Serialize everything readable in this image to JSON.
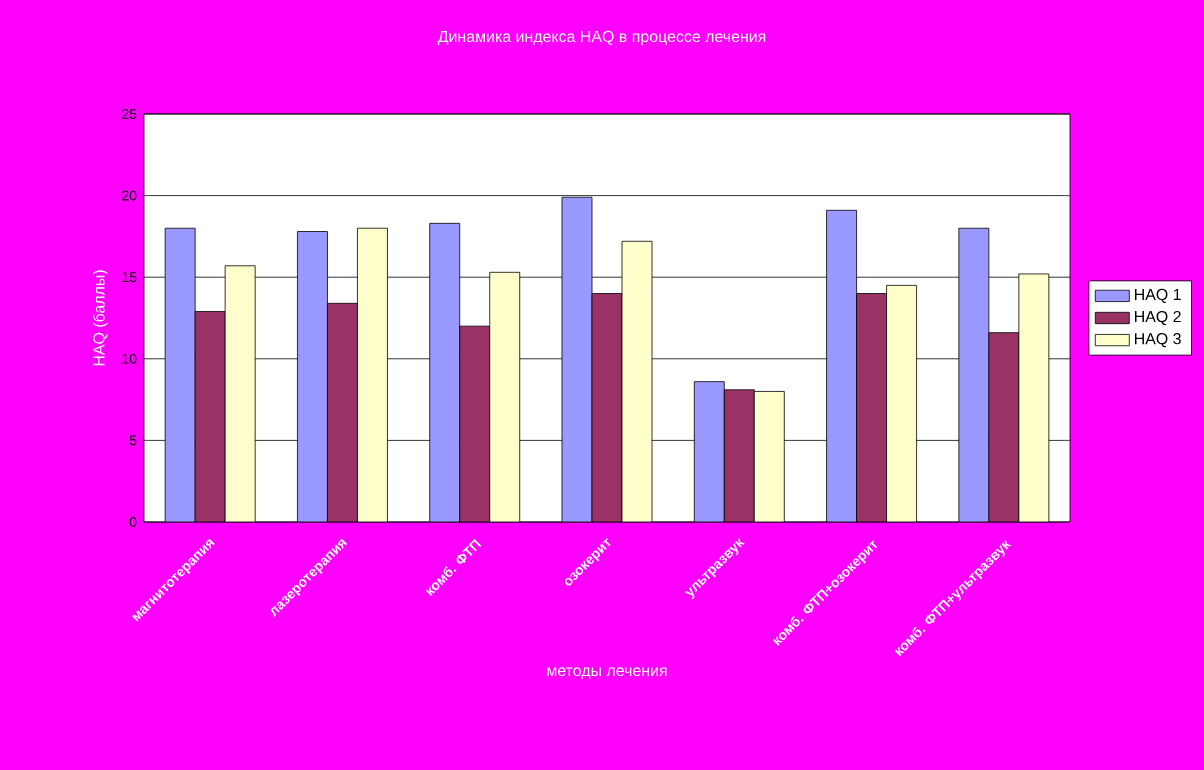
{
  "chart_data": {
    "type": "bar",
    "title": "Динамика индекса HAQ в процессе лечения",
    "xlabel": "методы лечения",
    "ylabel": "HAQ (баллы)",
    "categories": [
      "магнитотерапия",
      "лазеротерапия",
      "комб. ФТП",
      "озокерит",
      "ультразвук",
      "комб. ФТП+озокерит",
      "комб. ФТП+ультразвук"
    ],
    "series": [
      {
        "name": "HAQ 1",
        "color": "#9999ff",
        "values": [
          18.0,
          17.8,
          18.3,
          19.9,
          8.6,
          19.1,
          18.0
        ]
      },
      {
        "name": "HAQ 2",
        "color": "#993366",
        "values": [
          12.9,
          13.4,
          12.0,
          14.0,
          8.1,
          14.0,
          11.6
        ]
      },
      {
        "name": "HAQ 3",
        "color": "#ffffcc",
        "values": [
          15.7,
          18.0,
          15.3,
          17.2,
          8.0,
          14.5,
          15.2
        ]
      }
    ],
    "ylim": [
      0,
      25
    ],
    "yticks": [
      0,
      5,
      10,
      15,
      20,
      25
    ],
    "grid": "y",
    "legend": "right"
  }
}
